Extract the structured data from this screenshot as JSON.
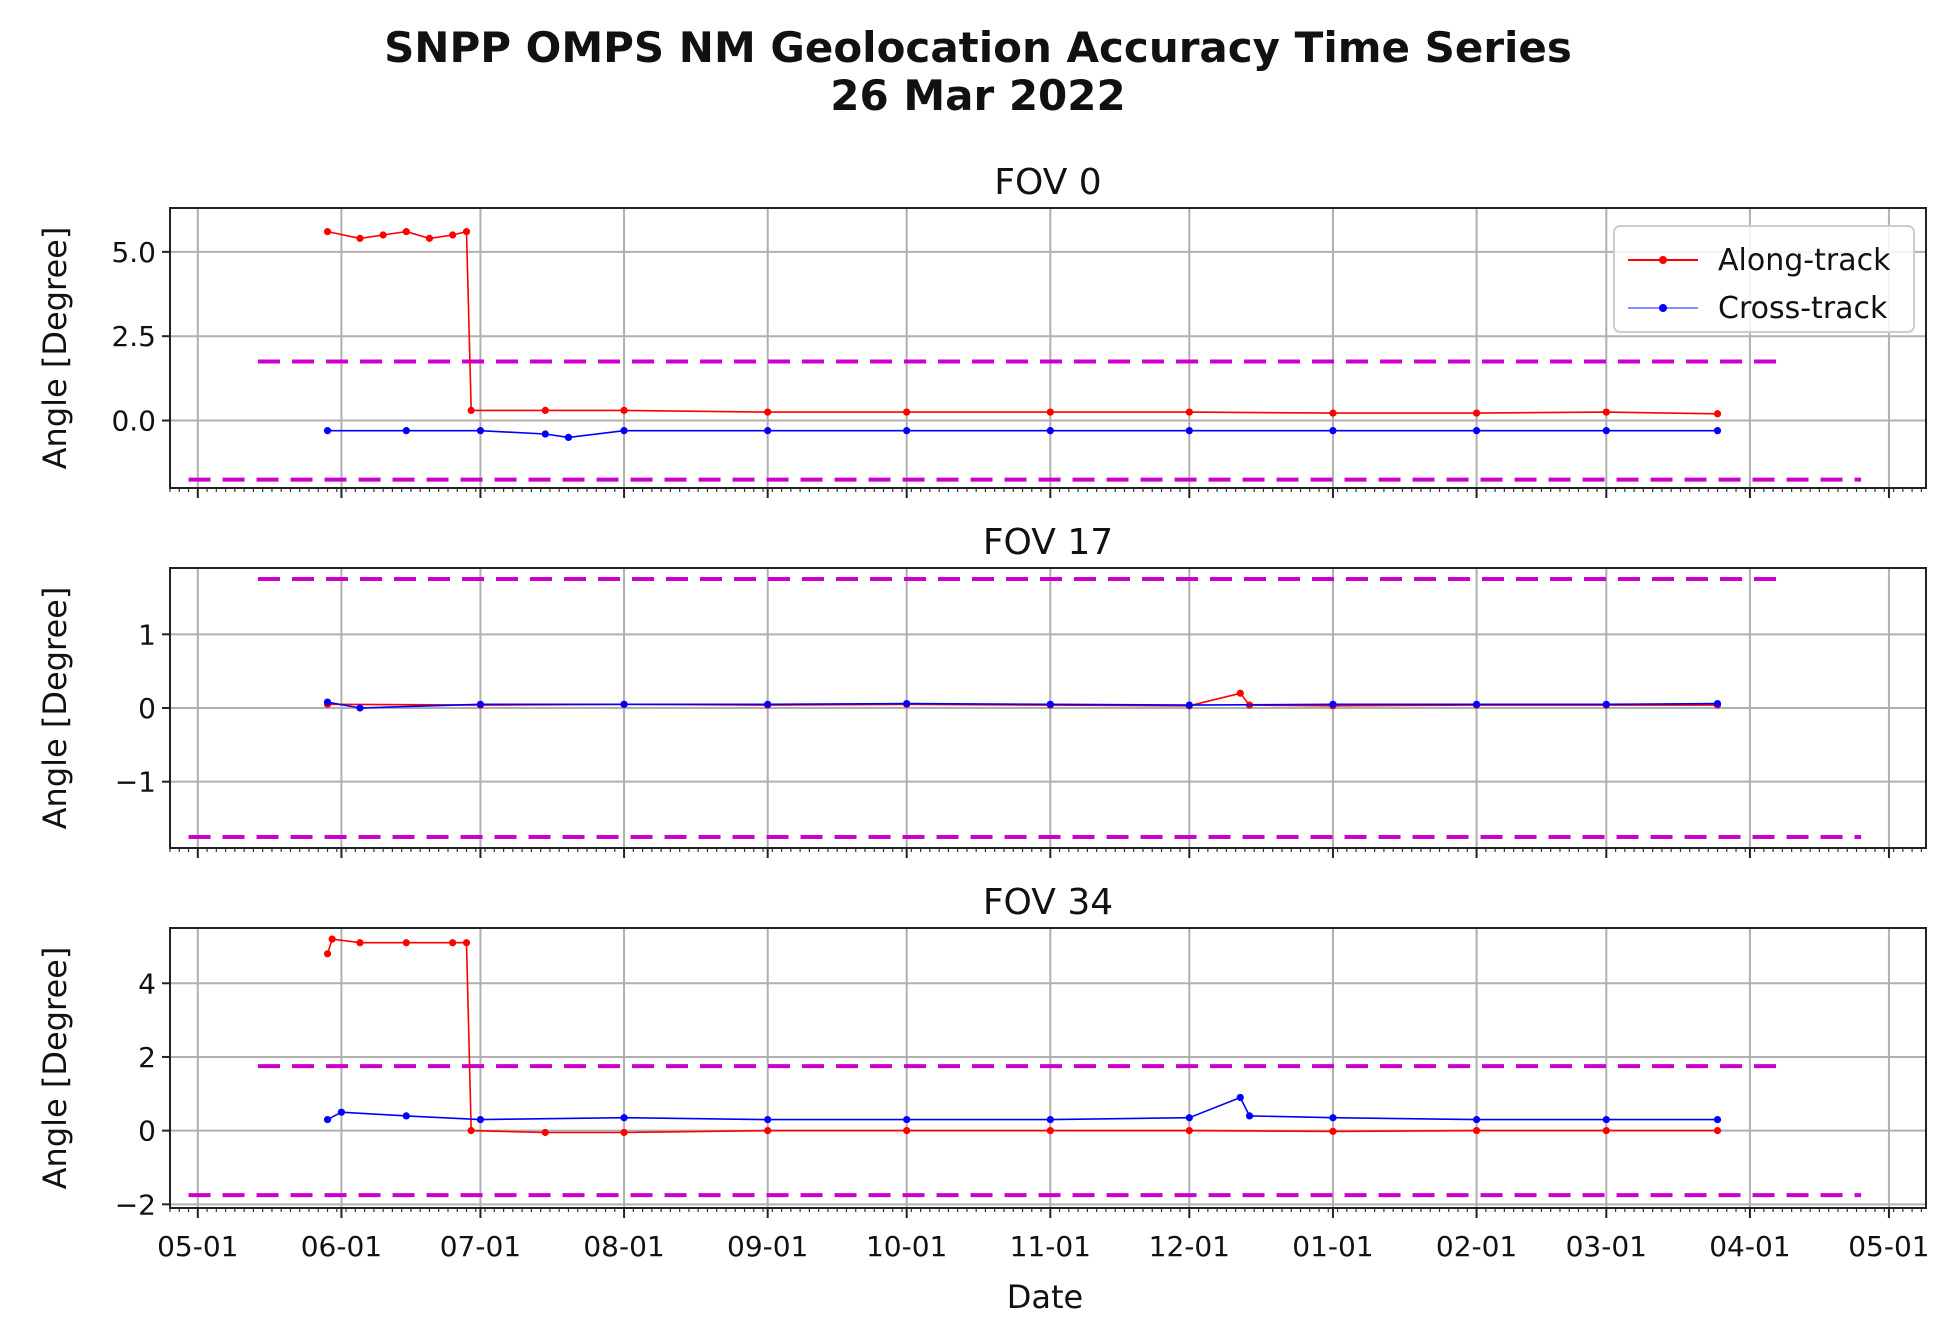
{
  "figure": {
    "title_line1": "SNPP OMPS NM Geolocation Accuracy Time Series",
    "title_line2": "26 Mar 2022",
    "xlabel": "Date"
  },
  "colors": {
    "along_track": "#ff0000",
    "cross_track": "#0000ff",
    "threshold": "#cc00cc",
    "grid": "#b0b0b0"
  },
  "legend": {
    "placement": "upper-right of first panel",
    "items": [
      {
        "label": "Along-track",
        "color": "#ff0000"
      },
      {
        "label": "Cross-track",
        "color": "#0000ff"
      }
    ]
  },
  "chart_data": [
    {
      "type": "line",
      "title": "FOV 0",
      "ylabel": "Angle [Degree]",
      "xlim": [
        "2021-04-25",
        "2022-05-09"
      ],
      "ylim": [
        -2.0,
        6.3
      ],
      "yticks": [
        0.0,
        2.5,
        5.0
      ],
      "ytick_labels": [
        "0.0",
        "2.5",
        "5.0"
      ],
      "xtick_labels": [
        "05-01",
        "06-01",
        "07-01",
        "08-01",
        "09-01",
        "10-01",
        "11-01",
        "12-01",
        "01-01",
        "02-01",
        "03-01",
        "04-01",
        "05-01"
      ],
      "xtick_dates": [
        "2021-05-01",
        "2021-06-01",
        "2021-07-01",
        "2021-08-01",
        "2021-09-01",
        "2021-10-01",
        "2021-11-01",
        "2021-12-01",
        "2022-01-01",
        "2022-02-01",
        "2022-03-01",
        "2022-04-01",
        "2022-05-01"
      ],
      "thresholds": [
        {
          "value": 1.75,
          "x_range": [
            "2021-05-14",
            "2022-04-09"
          ]
        },
        {
          "value": -1.75,
          "x_range": [
            "2021-04-29",
            "2022-04-25"
          ]
        }
      ],
      "series": [
        {
          "name": "Along-track",
          "x": [
            "2021-05-29",
            "2021-06-05",
            "2021-06-10",
            "2021-06-15",
            "2021-06-20",
            "2021-06-25",
            "2021-06-28",
            "2021-06-29",
            "2021-07-15",
            "2021-08-01",
            "2021-09-01",
            "2021-10-01",
            "2021-11-01",
            "2021-12-01",
            "2022-01-01",
            "2022-02-01",
            "2022-03-01",
            "2022-03-25"
          ],
          "y": [
            5.6,
            5.4,
            5.5,
            5.6,
            5.4,
            5.5,
            5.6,
            0.3,
            0.3,
            0.3,
            0.25,
            0.25,
            0.25,
            0.25,
            0.22,
            0.22,
            0.25,
            0.2
          ]
        },
        {
          "name": "Cross-track",
          "x": [
            "2021-05-29",
            "2021-06-15",
            "2021-07-01",
            "2021-07-15",
            "2021-07-20",
            "2021-08-01",
            "2021-09-01",
            "2021-10-01",
            "2021-11-01",
            "2021-12-01",
            "2022-01-01",
            "2022-02-01",
            "2022-03-01",
            "2022-03-25"
          ],
          "y": [
            -0.3,
            -0.3,
            -0.3,
            -0.4,
            -0.5,
            -0.3,
            -0.3,
            -0.3,
            -0.3,
            -0.3,
            -0.3,
            -0.3,
            -0.3,
            -0.3
          ]
        }
      ]
    },
    {
      "type": "line",
      "title": "FOV 17",
      "ylabel": "Angle [Degree]",
      "xlim": [
        "2021-04-25",
        "2022-05-09"
      ],
      "ylim": [
        -1.9,
        1.9
      ],
      "yticks": [
        -1,
        0,
        1
      ],
      "ytick_labels": [
        "−1",
        "0",
        "1"
      ],
      "xtick_labels": [
        "05-01",
        "06-01",
        "07-01",
        "08-01",
        "09-01",
        "10-01",
        "11-01",
        "12-01",
        "01-01",
        "02-01",
        "03-01",
        "04-01",
        "05-01"
      ],
      "xtick_dates": [
        "2021-05-01",
        "2021-06-01",
        "2021-07-01",
        "2021-08-01",
        "2021-09-01",
        "2021-10-01",
        "2021-11-01",
        "2021-12-01",
        "2022-01-01",
        "2022-02-01",
        "2022-03-01",
        "2022-04-01",
        "2022-05-01"
      ],
      "thresholds": [
        {
          "value": 1.75,
          "x_range": [
            "2021-05-14",
            "2022-04-09"
          ]
        },
        {
          "value": -1.75,
          "x_range": [
            "2021-04-29",
            "2022-04-25"
          ]
        }
      ],
      "series": [
        {
          "name": "Along-track",
          "x": [
            "2021-05-29",
            "2021-07-01",
            "2021-08-01",
            "2021-09-01",
            "2021-10-01",
            "2021-11-01",
            "2021-12-01",
            "2021-12-12",
            "2021-12-14",
            "2022-01-01",
            "2022-02-01",
            "2022-03-01",
            "2022-03-25"
          ],
          "y": [
            0.05,
            0.04,
            0.05,
            0.04,
            0.05,
            0.04,
            0.03,
            0.2,
            0.04,
            0.03,
            0.04,
            0.04,
            0.04
          ]
        },
        {
          "name": "Cross-track",
          "x": [
            "2021-05-29",
            "2021-06-05",
            "2021-07-01",
            "2021-08-01",
            "2021-09-01",
            "2021-10-01",
            "2021-11-01",
            "2021-12-01",
            "2022-01-01",
            "2022-02-01",
            "2022-03-01",
            "2022-03-25"
          ],
          "y": [
            0.08,
            0.0,
            0.05,
            0.05,
            0.05,
            0.06,
            0.05,
            0.04,
            0.05,
            0.05,
            0.05,
            0.06
          ]
        }
      ]
    },
    {
      "type": "line",
      "title": "FOV 34",
      "ylabel": "Angle [Degree]",
      "xlim": [
        "2021-04-25",
        "2022-05-09"
      ],
      "ylim": [
        -2.1,
        5.5
      ],
      "yticks": [
        -2,
        0,
        2,
        4
      ],
      "ytick_labels": [
        "−2",
        "0",
        "2",
        "4"
      ],
      "xtick_labels": [
        "05-01",
        "06-01",
        "07-01",
        "08-01",
        "09-01",
        "10-01",
        "11-01",
        "12-01",
        "01-01",
        "02-01",
        "03-01",
        "04-01",
        "05-01"
      ],
      "xtick_dates": [
        "2021-05-01",
        "2021-06-01",
        "2021-07-01",
        "2021-08-01",
        "2021-09-01",
        "2021-10-01",
        "2021-11-01",
        "2021-12-01",
        "2022-01-01",
        "2022-02-01",
        "2022-03-01",
        "2022-04-01",
        "2022-05-01"
      ],
      "thresholds": [
        {
          "value": 1.75,
          "x_range": [
            "2021-05-14",
            "2022-04-09"
          ]
        },
        {
          "value": -1.75,
          "x_range": [
            "2021-04-29",
            "2022-04-25"
          ]
        }
      ],
      "series": [
        {
          "name": "Along-track",
          "x": [
            "2021-05-29",
            "2021-05-30",
            "2021-06-05",
            "2021-06-15",
            "2021-06-25",
            "2021-06-28",
            "2021-06-29",
            "2021-07-15",
            "2021-08-01",
            "2021-09-01",
            "2021-10-01",
            "2021-11-01",
            "2021-12-01",
            "2022-01-01",
            "2022-02-01",
            "2022-03-01",
            "2022-03-25"
          ],
          "y": [
            4.8,
            5.2,
            5.1,
            5.1,
            5.1,
            5.1,
            0.0,
            -0.05,
            -0.05,
            0.0,
            0.0,
            0.0,
            0.0,
            -0.02,
            0.0,
            0.0,
            0.0
          ]
        },
        {
          "name": "Cross-track",
          "x": [
            "2021-05-29",
            "2021-06-01",
            "2021-06-15",
            "2021-07-01",
            "2021-08-01",
            "2021-09-01",
            "2021-10-01",
            "2021-11-01",
            "2021-12-01",
            "2021-12-12",
            "2021-12-14",
            "2022-01-01",
            "2022-02-01",
            "2022-03-01",
            "2022-03-25"
          ],
          "y": [
            0.3,
            0.5,
            0.4,
            0.3,
            0.35,
            0.3,
            0.3,
            0.3,
            0.35,
            0.9,
            0.4,
            0.35,
            0.3,
            0.3,
            0.3
          ]
        }
      ]
    }
  ]
}
